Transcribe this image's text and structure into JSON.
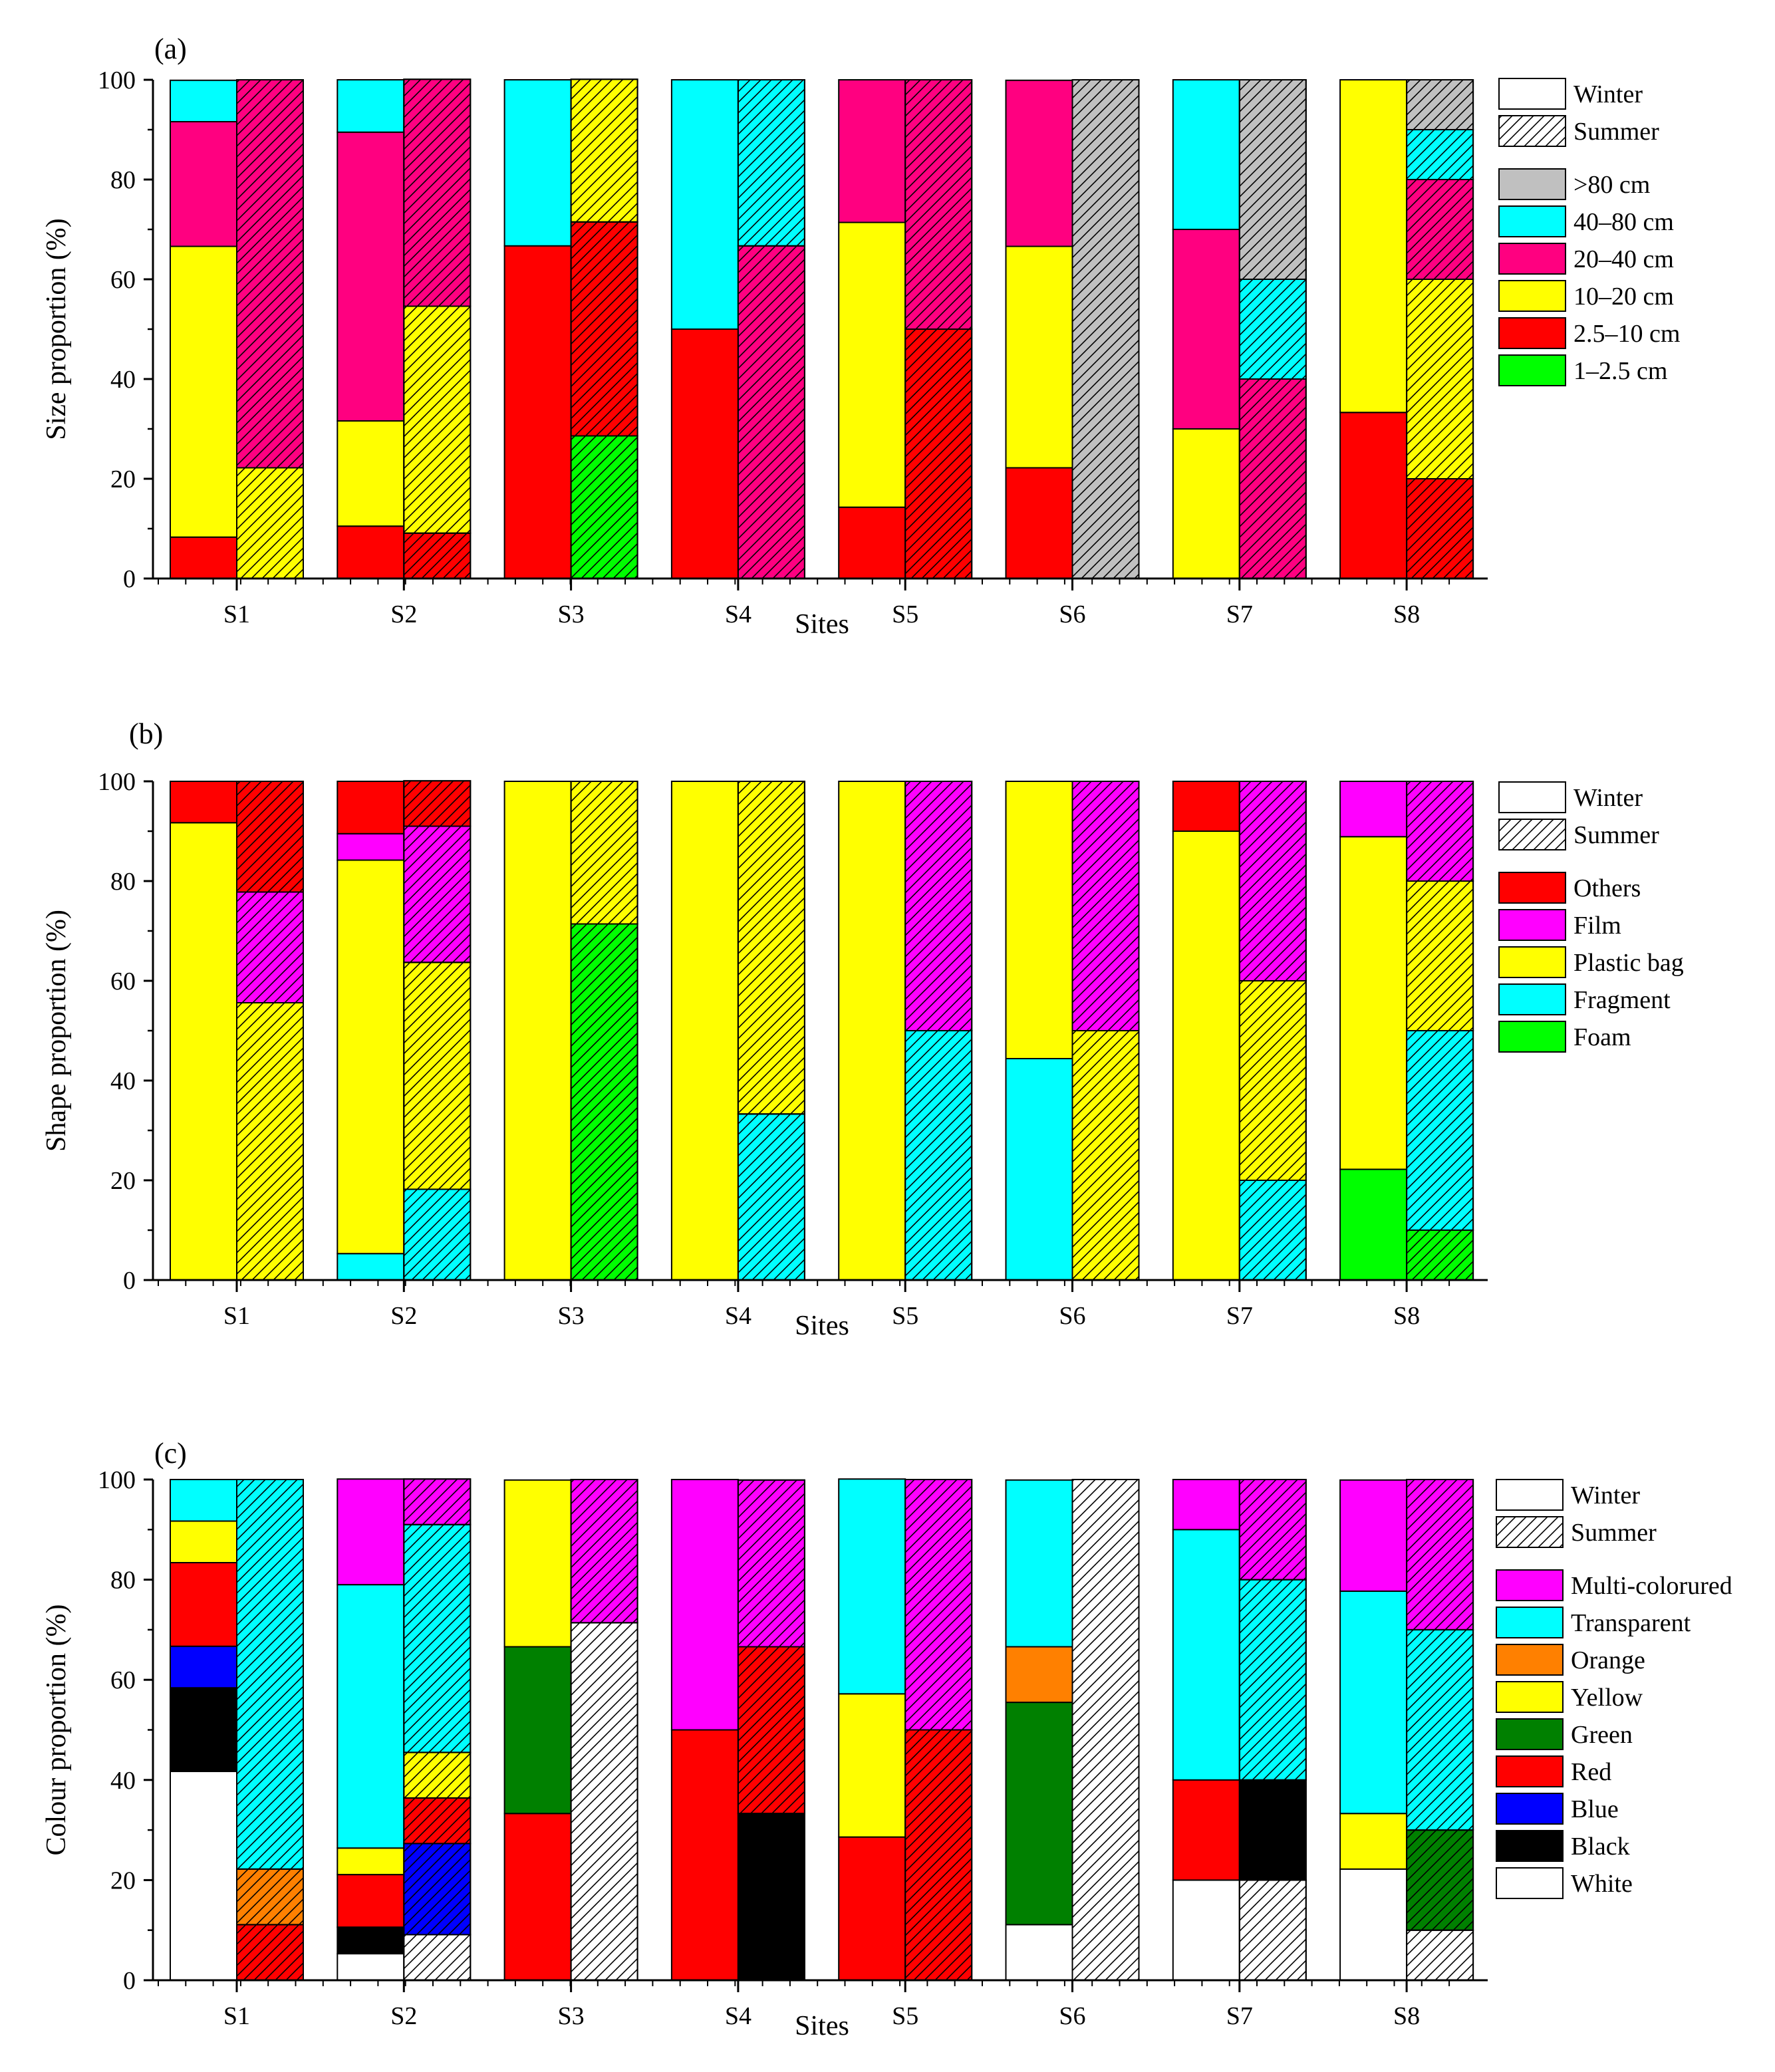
{
  "colors": {
    "gt80": "#c0c0c0",
    "c40_80": "#00ffff",
    "c20_40": "#ff0080",
    "c10_20": "#ffff00",
    "c2_5_10": "#ff0000",
    "c1_2_5": "#00ff00",
    "others": "#ff0000",
    "film": "#ff00ff",
    "plastic_bag": "#ffff00",
    "fragment": "#00ffff",
    "foam": "#00ff00",
    "multi": "#ff00ff",
    "transparent": "#00ffff",
    "orange": "#ff8000",
    "yellow": "#ffff00",
    "green": "#008000",
    "red": "#ff0000",
    "blue": "#0000ff",
    "black": "#000000",
    "white": "#ffffff"
  },
  "chart_data": [
    {
      "type": "bar",
      "panel_label": "(a)",
      "xlabel": "Sites",
      "ylabel": "Size proportion (%)",
      "ylim": [
        0,
        100
      ],
      "yticks": [
        "0",
        "20",
        "40",
        "60",
        "80",
        "100"
      ],
      "categories": [
        "S1",
        "S2",
        "S3",
        "S4",
        "S5",
        "S6",
        "S7",
        "S8"
      ],
      "seasons": [
        "Winter",
        "Summer"
      ],
      "legend": [
        {
          "key": "gt80",
          "label": ">80 cm"
        },
        {
          "key": "c40_80",
          "label": "40–80 cm"
        },
        {
          "key": "c20_40",
          "label": "20–40 cm"
        },
        {
          "key": "c10_20",
          "label": "10–20 cm"
        },
        {
          "key": "c2_5_10",
          "label": "2.5–10 cm"
        },
        {
          "key": "c1_2_5",
          "label": "1–2.5 cm"
        }
      ],
      "stack_order": [
        "c1_2_5",
        "c2_5_10",
        "c10_20",
        "c20_40",
        "c40_80",
        "gt80"
      ],
      "winter": {
        "c1_2_5": [
          0,
          0,
          0,
          0,
          0,
          0,
          0,
          0
        ],
        "c2_5_10": [
          8.3,
          10.5,
          66.7,
          50,
          14.3,
          22.2,
          0,
          33.3
        ],
        "c10_20": [
          58.3,
          21.1,
          0,
          0,
          57.1,
          44.4,
          30,
          66.7
        ],
        "c20_40": [
          25,
          57.9,
          0,
          0,
          28.6,
          33.3,
          40,
          0
        ],
        "c40_80": [
          8.3,
          10.5,
          33.3,
          50,
          0,
          0,
          30,
          0
        ],
        "gt80": [
          0,
          0,
          0,
          0,
          0,
          0,
          0,
          0
        ]
      },
      "summer": {
        "c1_2_5": [
          0,
          0,
          28.6,
          0,
          0,
          0,
          0,
          0
        ],
        "c2_5_10": [
          0,
          9.1,
          42.9,
          0,
          50,
          0,
          0,
          20
        ],
        "c10_20": [
          22.2,
          45.5,
          28.6,
          0,
          0,
          0,
          0,
          40
        ],
        "c20_40": [
          77.8,
          45.5,
          0,
          66.7,
          50,
          0,
          40,
          20
        ],
        "c40_80": [
          0,
          0,
          0,
          33.3,
          0,
          0,
          20,
          10
        ],
        "gt80": [
          0,
          0,
          0,
          0,
          0,
          100,
          40,
          10
        ]
      }
    },
    {
      "type": "bar",
      "panel_label": "(b)",
      "xlabel": "Sites",
      "ylabel": "Shape proportion (%)",
      "ylim": [
        0,
        100
      ],
      "yticks": [
        "0",
        "20",
        "40",
        "60",
        "80",
        "100"
      ],
      "categories": [
        "S1",
        "S2",
        "S3",
        "S4",
        "S5",
        "S6",
        "S7",
        "S8"
      ],
      "seasons": [
        "Winter",
        "Summer"
      ],
      "legend": [
        {
          "key": "others",
          "label": "Others"
        },
        {
          "key": "film",
          "label": "Film"
        },
        {
          "key": "plastic_bag",
          "label": "Plastic bag"
        },
        {
          "key": "fragment",
          "label": "Fragment"
        },
        {
          "key": "foam",
          "label": "Foam"
        }
      ],
      "stack_order": [
        "foam",
        "fragment",
        "plastic_bag",
        "film",
        "others"
      ],
      "winter": {
        "foam": [
          0,
          0,
          0,
          0,
          0,
          0,
          0,
          22.2
        ],
        "fragment": [
          0,
          5.3,
          0,
          0,
          0,
          44.4,
          0,
          0
        ],
        "plastic_bag": [
          91.7,
          78.9,
          100,
          100,
          100,
          55.6,
          90,
          66.7
        ],
        "film": [
          0,
          5.3,
          0,
          0,
          0,
          0,
          0,
          11.1
        ],
        "others": [
          8.3,
          10.5,
          0,
          0,
          0,
          0,
          10,
          0
        ]
      },
      "summer": {
        "foam": [
          0,
          0,
          71.4,
          0,
          0,
          0,
          0,
          10
        ],
        "fragment": [
          0,
          18.2,
          0,
          33.3,
          50,
          0,
          20,
          40
        ],
        "plastic_bag": [
          55.6,
          45.5,
          28.6,
          66.7,
          0,
          50,
          40,
          30
        ],
        "film": [
          22.2,
          27.3,
          0,
          0,
          50,
          50,
          40,
          20
        ],
        "others": [
          22.2,
          9.1,
          0,
          0,
          0,
          0,
          0,
          0
        ]
      }
    },
    {
      "type": "bar",
      "panel_label": "(c)",
      "xlabel": "Sites",
      "ylabel": "Colour proportion (%)",
      "ylim": [
        0,
        100
      ],
      "yticks": [
        "0",
        "20",
        "40",
        "60",
        "80",
        "100"
      ],
      "categories": [
        "S1",
        "S2",
        "S3",
        "S4",
        "S5",
        "S6",
        "S7",
        "S8"
      ],
      "seasons": [
        "Winter",
        "Summer"
      ],
      "legend": [
        {
          "key": "multi",
          "label": "Multi-colorured"
        },
        {
          "key": "transparent",
          "label": "Transparent"
        },
        {
          "key": "orange",
          "label": "Orange"
        },
        {
          "key": "yellow",
          "label": "Yellow"
        },
        {
          "key": "green",
          "label": "Green"
        },
        {
          "key": "red",
          "label": "Red"
        },
        {
          "key": "blue",
          "label": "Blue"
        },
        {
          "key": "black",
          "label": "Black"
        },
        {
          "key": "white",
          "label": "White"
        }
      ],
      "stack_order": [
        "white",
        "black",
        "blue",
        "red",
        "green",
        "yellow",
        "orange",
        "transparent",
        "multi"
      ],
      "winter": {
        "white": [
          41.7,
          5.3,
          0,
          0,
          0,
          11.1,
          20,
          22.2
        ],
        "black": [
          16.7,
          5.3,
          0,
          0,
          0,
          0,
          0,
          0
        ],
        "blue": [
          8.3,
          0,
          0,
          0,
          0,
          0,
          0,
          0
        ],
        "red": [
          16.7,
          10.5,
          33.3,
          50,
          28.6,
          0,
          20,
          0
        ],
        "green": [
          0,
          0,
          33.3,
          0,
          0,
          44.4,
          0,
          0
        ],
        "yellow": [
          8.3,
          5.3,
          33.3,
          0,
          28.6,
          0,
          0,
          11.1
        ],
        "orange": [
          0,
          0,
          0,
          0,
          0,
          11.1,
          0,
          0
        ],
        "transparent": [
          8.3,
          52.6,
          0,
          0,
          42.9,
          33.3,
          50,
          44.4
        ],
        "multi": [
          0,
          21.1,
          0,
          50,
          0,
          0,
          10,
          22.2
        ]
      },
      "summer": {
        "white": [
          0,
          9.1,
          71.4,
          0,
          0,
          100,
          20,
          10
        ],
        "black": [
          0,
          0,
          0,
          33.3,
          0,
          0,
          20,
          0
        ],
        "blue": [
          0,
          18.2,
          0,
          0,
          0,
          0,
          0,
          0
        ],
        "red": [
          11.1,
          9.1,
          0,
          33.3,
          50,
          0,
          0,
          0
        ],
        "green": [
          0,
          0,
          0,
          0,
          0,
          0,
          0,
          20
        ],
        "yellow": [
          0,
          9.1,
          0,
          0,
          0,
          0,
          0,
          0
        ],
        "orange": [
          11.1,
          0,
          0,
          0,
          0,
          0,
          0,
          0
        ],
        "transparent": [
          77.8,
          45.5,
          0,
          0,
          0,
          0,
          40,
          40
        ],
        "multi": [
          0,
          9.1,
          28.6,
          33.3,
          50,
          0,
          20,
          30
        ]
      }
    }
  ]
}
